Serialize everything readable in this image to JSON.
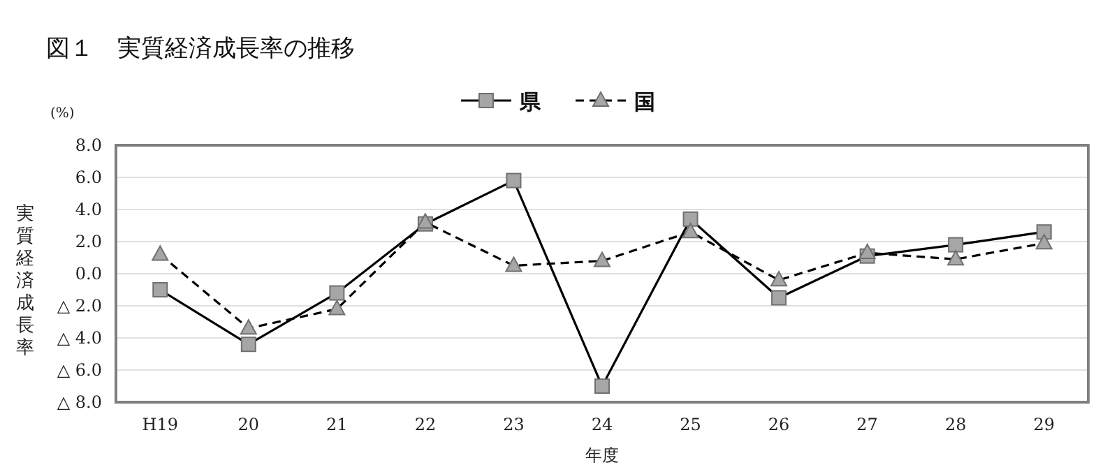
{
  "chart_data": {
    "type": "line",
    "title": "図１　実質経済成長率の推移",
    "xlabel": "年度",
    "ylabel": "実質経済成長率",
    "annotations": [
      "(%)"
    ],
    "categories": [
      "H19",
      "20",
      "21",
      "22",
      "23",
      "24",
      "25",
      "26",
      "27",
      "28",
      "29"
    ],
    "series": [
      {
        "name": "県",
        "color": "#000000",
        "marker": "square",
        "line_style": "solid",
        "values": [
          -1.0,
          -4.4,
          -1.2,
          3.1,
          5.8,
          -7.0,
          3.4,
          -1.5,
          1.1,
          1.8,
          2.6
        ]
      },
      {
        "name": "国",
        "color": "#000000",
        "marker": "triangle",
        "line_style": "dashed",
        "values": [
          1.2,
          -3.4,
          -2.2,
          3.2,
          0.5,
          0.8,
          2.6,
          -0.4,
          1.3,
          0.9,
          1.9
        ]
      }
    ],
    "ylim": [
      -8,
      8
    ],
    "yticks": [
      {
        "value": 8,
        "label": "8.0"
      },
      {
        "value": 6,
        "label": "6.0"
      },
      {
        "value": 4,
        "label": "4.0"
      },
      {
        "value": 2,
        "label": "2.0"
      },
      {
        "value": 0,
        "label": "0.0"
      },
      {
        "value": -2,
        "label": "△ 2.0"
      },
      {
        "value": -4,
        "label": "△ 4.0"
      },
      {
        "value": -6,
        "label": "△ 6.0"
      },
      {
        "value": -8,
        "label": "△ 8.0"
      }
    ],
    "grid": "y",
    "legend": "top"
  }
}
